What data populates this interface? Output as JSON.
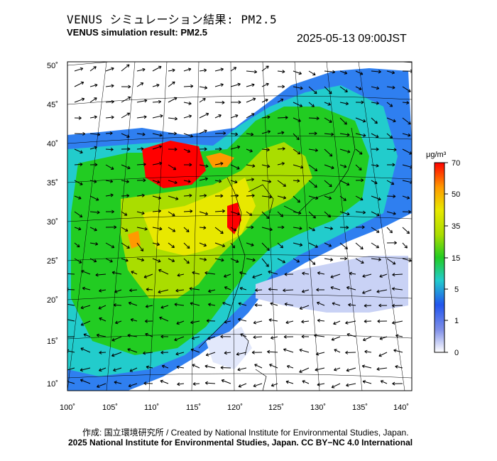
{
  "header": {
    "title_jp": "VENUS シミュレーション結果: PM2.5",
    "title_en": "VENUS simulation result: PM2.5",
    "timestamp": "2025-05-13 09:00JST"
  },
  "axes": {
    "lat_labels": [
      "50˚",
      "45˚",
      "40˚",
      "35˚",
      "30˚",
      "25˚",
      "20˚",
      "15˚",
      "10˚"
    ],
    "lon_labels": [
      "100˚",
      "105˚",
      "110˚",
      "115˚",
      "120˚",
      "125˚",
      "130˚",
      "135˚",
      "140˚"
    ]
  },
  "colorbar": {
    "unit": "μg/m³",
    "ticks": [
      "70",
      "50",
      "35",
      "15",
      "5",
      "1",
      "0"
    ],
    "colors": [
      "#ff0000",
      "#ff9a00",
      "#e8e800",
      "#22cc22",
      "#22cccc",
      "#2255ee",
      "#ffffff"
    ]
  },
  "footer": {
    "credit_line1": "作成: 国立環境研究所 / Created by National Institute for Environmental Studies, Japan.",
    "credit_line2": "2025 National Institute for Environmental Studies, Japan. CC BY−NC 4.0 International"
  }
}
